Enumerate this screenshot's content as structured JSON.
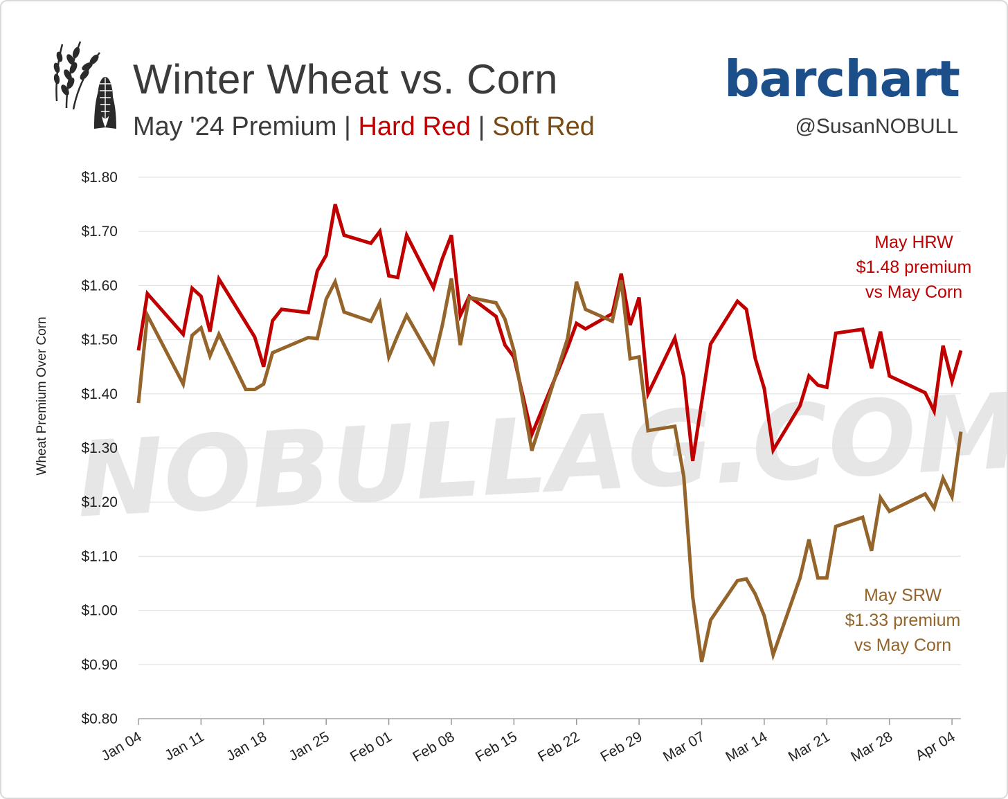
{
  "header": {
    "title": "Winter Wheat vs. Corn",
    "subtitle_prefix": "May '24 Premium | ",
    "subtitle_hard": "Hard Red",
    "subtitle_sep": " | ",
    "subtitle_soft": "Soft Red",
    "brand": "barchart",
    "handle": "@SusanNOBULL",
    "watermark": "NOBULLAG.COM"
  },
  "colors": {
    "hard_red": "#c00000",
    "soft_red": "#94642a",
    "brand": "#1c4f8a",
    "grid": "#e4e4e4",
    "text": "#3b3b3b"
  },
  "icons": [
    "wheat-icon",
    "corn-icon"
  ],
  "chart_data": {
    "type": "line",
    "title": "Winter Wheat vs. Corn",
    "subtitle": "May '24 Premium | Hard Red | Soft Red",
    "xlabel": "",
    "ylabel": "Wheat Premium Over Corn",
    "ylim": [
      0.8,
      1.8
    ],
    "yticks": [
      0.8,
      0.9,
      1.0,
      1.1,
      1.2,
      1.3,
      1.4,
      1.5,
      1.6,
      1.7,
      1.8
    ],
    "ytick_labels": [
      "$0.80",
      "$0.90",
      "$1.00",
      "$1.10",
      "$1.20",
      "$1.30",
      "$1.40",
      "$1.50",
      "$1.60",
      "$1.70",
      "$1.80"
    ],
    "xlim": [
      "2024-01-04",
      "2024-04-05"
    ],
    "xticks": [
      "2024-01-04",
      "2024-01-11",
      "2024-01-18",
      "2024-01-25",
      "2024-02-01",
      "2024-02-08",
      "2024-02-15",
      "2024-02-22",
      "2024-02-29",
      "2024-03-07",
      "2024-03-14",
      "2024-03-21",
      "2024-03-28",
      "2024-04-04"
    ],
    "xtick_labels": [
      "Jan 04",
      "Jan 11",
      "Jan 18",
      "Jan 25",
      "Feb 01",
      "Feb 08",
      "Feb 15",
      "Feb 22",
      "Feb 29",
      "Mar 07",
      "Mar 14",
      "Mar 21",
      "Mar 28",
      "Apr 04"
    ],
    "grid": "horizontal",
    "series": [
      {
        "name": "Hard Red",
        "color": "#c00000",
        "points": [
          [
            "2024-01-04",
            1.48
          ],
          [
            "2024-01-05",
            1.585
          ],
          [
            "2024-01-09",
            1.51
          ],
          [
            "2024-01-10",
            1.595
          ],
          [
            "2024-01-11",
            1.58
          ],
          [
            "2024-01-12",
            1.515
          ],
          [
            "2024-01-13",
            1.612
          ],
          [
            "2024-01-17",
            1.505
          ],
          [
            "2024-01-18",
            1.45
          ],
          [
            "2024-01-19",
            1.535
          ],
          [
            "2024-01-20",
            1.556
          ],
          [
            "2024-01-23",
            1.55
          ],
          [
            "2024-01-24",
            1.627
          ],
          [
            "2024-01-25",
            1.656
          ],
          [
            "2024-01-26",
            1.75
          ],
          [
            "2024-01-27",
            1.693
          ],
          [
            "2024-01-30",
            1.678
          ],
          [
            "2024-01-31",
            1.7
          ],
          [
            "2024-02-01",
            1.618
          ],
          [
            "2024-02-02",
            1.615
          ],
          [
            "2024-02-03",
            1.693
          ],
          [
            "2024-02-06",
            1.596
          ],
          [
            "2024-02-07",
            1.65
          ],
          [
            "2024-02-08",
            1.693
          ],
          [
            "2024-02-09",
            1.545
          ],
          [
            "2024-02-10",
            1.58
          ],
          [
            "2024-02-13",
            1.543
          ],
          [
            "2024-02-14",
            1.49
          ],
          [
            "2024-02-15",
            1.468
          ],
          [
            "2024-02-17",
            1.325
          ],
          [
            "2024-02-21",
            1.485
          ],
          [
            "2024-02-22",
            1.53
          ],
          [
            "2024-02-23",
            1.52
          ],
          [
            "2024-02-26",
            1.548
          ],
          [
            "2024-02-27",
            1.622
          ],
          [
            "2024-02-28",
            1.527
          ],
          [
            "2024-02-29",
            1.578
          ],
          [
            "2024-03-01",
            1.4
          ],
          [
            "2024-03-04",
            1.503
          ],
          [
            "2024-03-05",
            1.432
          ],
          [
            "2024-03-06",
            1.276
          ],
          [
            "2024-03-08",
            1.492
          ],
          [
            "2024-03-11",
            1.571
          ],
          [
            "2024-03-12",
            1.556
          ],
          [
            "2024-03-13",
            1.465
          ],
          [
            "2024-03-14",
            1.41
          ],
          [
            "2024-03-15",
            1.296
          ],
          [
            "2024-03-18",
            1.378
          ],
          [
            "2024-03-19",
            1.433
          ],
          [
            "2024-03-20",
            1.416
          ],
          [
            "2024-03-21",
            1.412
          ],
          [
            "2024-03-22",
            1.512
          ],
          [
            "2024-03-25",
            1.519
          ],
          [
            "2024-03-26",
            1.447
          ],
          [
            "2024-03-27",
            1.515
          ],
          [
            "2024-03-28",
            1.433
          ],
          [
            "2024-04-01",
            1.402
          ],
          [
            "2024-04-02",
            1.368
          ],
          [
            "2024-04-03",
            1.489
          ],
          [
            "2024-04-04",
            1.423
          ],
          [
            "2024-04-05",
            1.48
          ]
        ]
      },
      {
        "name": "Soft Red",
        "color": "#94642a",
        "points": [
          [
            "2024-01-04",
            1.383
          ],
          [
            "2024-01-05",
            1.545
          ],
          [
            "2024-01-09",
            1.418
          ],
          [
            "2024-01-10",
            1.508
          ],
          [
            "2024-01-11",
            1.522
          ],
          [
            "2024-01-12",
            1.47
          ],
          [
            "2024-01-13",
            1.51
          ],
          [
            "2024-01-16",
            1.408
          ],
          [
            "2024-01-17",
            1.408
          ],
          [
            "2024-01-18",
            1.418
          ],
          [
            "2024-01-19",
            1.476
          ],
          [
            "2024-01-23",
            1.504
          ],
          [
            "2024-01-24",
            1.502
          ],
          [
            "2024-01-25",
            1.575
          ],
          [
            "2024-01-26",
            1.607
          ],
          [
            "2024-01-27",
            1.551
          ],
          [
            "2024-01-30",
            1.534
          ],
          [
            "2024-01-31",
            1.568
          ],
          [
            "2024-02-01",
            1.468
          ],
          [
            "2024-02-02",
            1.508
          ],
          [
            "2024-02-03",
            1.545
          ],
          [
            "2024-02-06",
            1.458
          ],
          [
            "2024-02-07",
            1.527
          ],
          [
            "2024-02-08",
            1.613
          ],
          [
            "2024-02-09",
            1.49
          ],
          [
            "2024-02-10",
            1.578
          ],
          [
            "2024-02-13",
            1.568
          ],
          [
            "2024-02-14",
            1.538
          ],
          [
            "2024-02-15",
            1.48
          ],
          [
            "2024-02-17",
            1.295
          ],
          [
            "2024-02-21",
            1.502
          ],
          [
            "2024-02-22",
            1.607
          ],
          [
            "2024-02-23",
            1.556
          ],
          [
            "2024-02-26",
            1.534
          ],
          [
            "2024-02-27",
            1.61
          ],
          [
            "2024-02-28",
            1.465
          ],
          [
            "2024-02-29",
            1.468
          ],
          [
            "2024-03-01",
            1.332
          ],
          [
            "2024-03-04",
            1.34
          ],
          [
            "2024-03-05",
            1.247
          ],
          [
            "2024-03-06",
            1.025
          ],
          [
            "2024-03-07",
            0.905
          ],
          [
            "2024-03-08",
            0.982
          ],
          [
            "2024-03-11",
            1.055
          ],
          [
            "2024-03-12",
            1.058
          ],
          [
            "2024-03-13",
            1.03
          ],
          [
            "2024-03-14",
            0.99
          ],
          [
            "2024-03-15",
            0.918
          ],
          [
            "2024-03-18",
            1.06
          ],
          [
            "2024-03-19",
            1.131
          ],
          [
            "2024-03-20",
            1.06
          ],
          [
            "2024-03-21",
            1.06
          ],
          [
            "2024-03-22",
            1.155
          ],
          [
            "2024-03-25",
            1.172
          ],
          [
            "2024-03-26",
            1.11
          ],
          [
            "2024-03-27",
            1.208
          ],
          [
            "2024-03-28",
            1.183
          ],
          [
            "2024-04-01",
            1.215
          ],
          [
            "2024-04-02",
            1.189
          ],
          [
            "2024-04-03",
            1.244
          ],
          [
            "2024-04-04",
            1.21
          ],
          [
            "2024-04-05",
            1.33
          ]
        ]
      }
    ],
    "annotations": [
      {
        "series": "Hard Red",
        "lines": [
          "May HRW",
          "$1.48 premium",
          "vs May Corn"
        ]
      },
      {
        "series": "Soft Red",
        "lines": [
          "May SRW",
          "$1.33 premium",
          "vs May Corn"
        ]
      }
    ]
  }
}
